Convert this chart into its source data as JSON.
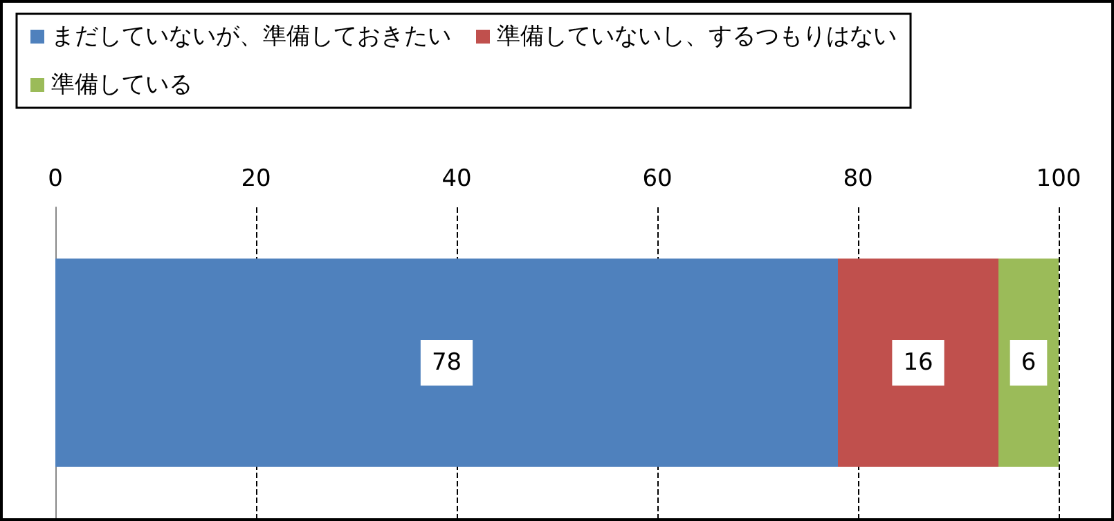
{
  "chart_data": {
    "type": "bar",
    "orientation": "horizontal",
    "stacked": true,
    "categories": [
      null
    ],
    "series": [
      {
        "name": "まだしていないが、準備しておきたい",
        "color": "#4f81bd",
        "values": [
          78
        ]
      },
      {
        "name": "準備していないし、するつもりはない",
        "color": "#c0504d",
        "values": [
          16
        ]
      },
      {
        "name": "準備している",
        "color": "#9bbb59",
        "values": [
          6
        ]
      }
    ],
    "xlim": [
      0,
      100
    ],
    "xticks": [
      0,
      20,
      40,
      60,
      80,
      100
    ],
    "grid": "x",
    "legend": "top",
    "data_labels": true
  }
}
